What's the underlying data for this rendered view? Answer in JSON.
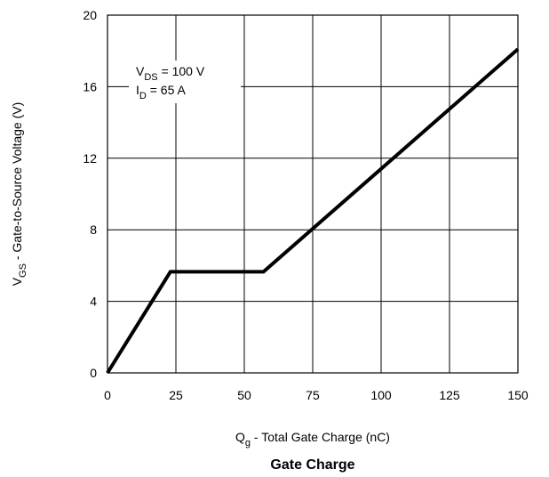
{
  "chart_data": {
    "type": "line",
    "title": "Gate Charge",
    "xlabel": {
      "main": "Q",
      "sub": "g",
      "rest": " - Total Gate Charge (nC)"
    },
    "ylabel": {
      "main": "V",
      "sub": "GS",
      "rest": " - Gate-to-Source Voltage (V)"
    },
    "xlim": [
      0,
      150
    ],
    "ylim": [
      0,
      20
    ],
    "xticks": [
      "0",
      "25",
      "50",
      "75",
      "100",
      "125",
      "150"
    ],
    "yticks": [
      "0",
      "4",
      "8",
      "12",
      "16",
      "20"
    ],
    "grid": true,
    "annotation": {
      "line1": {
        "main": "V",
        "sub": "DS",
        "rest": " = 100 V"
      },
      "line2": {
        "main": "I",
        "sub": "D",
        "rest": " = 65 A"
      }
    },
    "series": [
      {
        "x": [
          0,
          23,
          57,
          150
        ],
        "y": [
          0,
          5.65,
          5.65,
          18.1
        ]
      }
    ]
  }
}
